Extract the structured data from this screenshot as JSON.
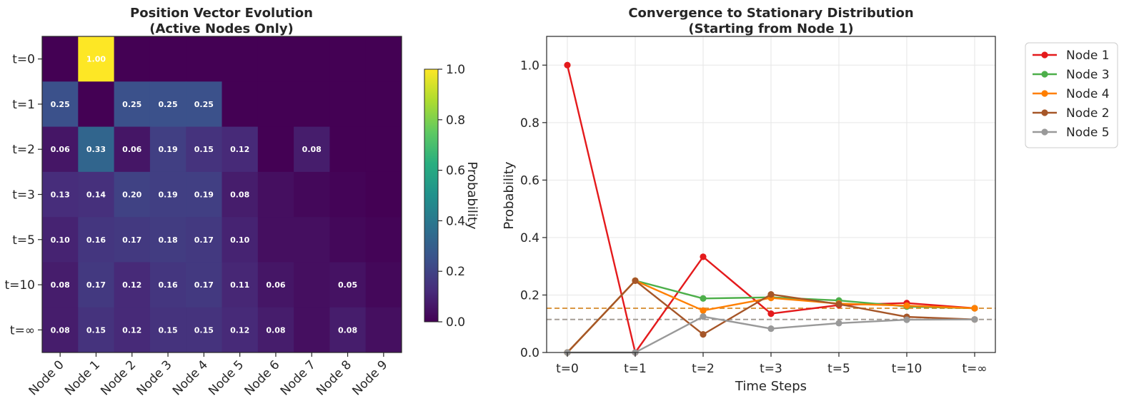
{
  "chart_data": [
    {
      "type": "heatmap",
      "title": "Position Vector Evolution",
      "subtitle": "(Active Nodes Only)",
      "rows": [
        "t=0",
        "t=1",
        "t=2",
        "t=3",
        "t=5",
        "t=10",
        "t=∞"
      ],
      "columns": [
        "Node 0",
        "Node 1",
        "Node 2",
        "Node 3",
        "Node 4",
        "Node 5",
        "Node 6",
        "Node 7",
        "Node 8",
        "Node 9"
      ],
      "values": [
        [
          0.0,
          1.0,
          0.0,
          0.0,
          0.0,
          0.0,
          0.0,
          0.0,
          0.0,
          0.0
        ],
        [
          0.25,
          0.0,
          0.25,
          0.25,
          0.25,
          0.0,
          0.0,
          0.0,
          0.0,
          0.0
        ],
        [
          0.06,
          0.33,
          0.06,
          0.19,
          0.15,
          0.12,
          0.0,
          0.08,
          0.0,
          0.0
        ],
        [
          0.13,
          0.14,
          0.2,
          0.19,
          0.19,
          0.08,
          0.04,
          0.02,
          0.01,
          0.0
        ],
        [
          0.1,
          0.16,
          0.17,
          0.18,
          0.17,
          0.1,
          0.04,
          0.04,
          0.02,
          0.01
        ],
        [
          0.08,
          0.17,
          0.12,
          0.16,
          0.17,
          0.11,
          0.06,
          0.04,
          0.05,
          0.02
        ],
        [
          0.08,
          0.15,
          0.12,
          0.15,
          0.15,
          0.12,
          0.08,
          0.04,
          0.08,
          0.04
        ]
      ],
      "labels": [
        [
          "",
          "1.00",
          "",
          "",
          "",
          "",
          "",
          "",
          "",
          ""
        ],
        [
          "0.25",
          "",
          "0.25",
          "0.25",
          "0.25",
          "",
          "",
          "",
          "",
          ""
        ],
        [
          "0.06",
          "0.33",
          "0.06",
          "0.19",
          "0.15",
          "0.12",
          "",
          "0.08",
          "",
          ""
        ],
        [
          "0.13",
          "0.14",
          "0.20",
          "0.19",
          "0.19",
          "0.08",
          "",
          "",
          "",
          ""
        ],
        [
          "0.10",
          "0.16",
          "0.17",
          "0.18",
          "0.17",
          "0.10",
          "",
          "",
          "",
          ""
        ],
        [
          "0.08",
          "0.17",
          "0.12",
          "0.16",
          "0.17",
          "0.11",
          "0.06",
          "",
          "0.05",
          ""
        ],
        [
          "0.08",
          "0.15",
          "0.12",
          "0.15",
          "0.15",
          "0.12",
          "0.08",
          "",
          "0.08",
          ""
        ]
      ],
      "colorbar": {
        "label": "Probability",
        "range": [
          0,
          1
        ],
        "ticks": [
          "0.0",
          "0.2",
          "0.4",
          "0.6",
          "0.8",
          "1.0"
        ],
        "colormap": "viridis"
      }
    },
    {
      "type": "line",
      "title": "Convergence to Stationary Distribution",
      "subtitle": "(Starting from Node 1)",
      "xlabel": "Time Steps",
      "ylabel": "Probability",
      "categories": [
        "t=0",
        "t=1",
        "t=2",
        "t=3",
        "t=5",
        "t=10",
        "t=∞"
      ],
      "ylim": [
        0,
        1.1
      ],
      "yticks": [
        "0.0",
        "0.2",
        "0.4",
        "0.6",
        "0.8",
        "1.0"
      ],
      "grid": true,
      "legend_position": "outside upper right",
      "series": [
        {
          "name": "Node 1",
          "color": "#e41a1c",
          "values": [
            1.0,
            0.0,
            0.333,
            0.135,
            0.165,
            0.172,
            0.154
          ]
        },
        {
          "name": "Node 3",
          "color": "#4daf4a",
          "values": [
            0.0,
            0.25,
            0.188,
            0.192,
            0.181,
            0.16,
            0.154
          ]
        },
        {
          "name": "Node 4",
          "color": "#ff7f00",
          "values": [
            0.0,
            0.25,
            0.146,
            0.19,
            0.17,
            0.163,
            0.154
          ]
        },
        {
          "name": "Node 2",
          "color": "#a65628",
          "values": [
            0.0,
            0.25,
            0.063,
            0.202,
            0.168,
            0.124,
            0.115
          ]
        },
        {
          "name": "Node 5",
          "color": "#999999",
          "values": [
            0.0,
            0.0,
            0.125,
            0.083,
            0.102,
            0.114,
            0.115
          ]
        }
      ],
      "reference_lines": [
        {
          "y": 0.154,
          "color": "#d58a2a",
          "style": "dashed"
        },
        {
          "y": 0.115,
          "color": "#a09890",
          "style": "dashed"
        }
      ]
    }
  ]
}
